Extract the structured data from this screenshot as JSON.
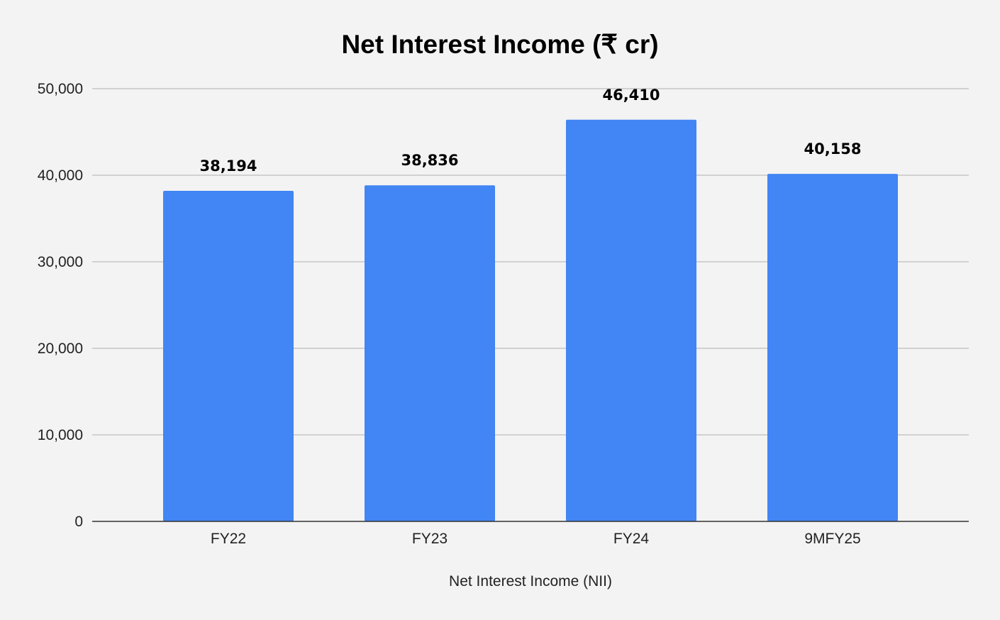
{
  "chart_data": {
    "type": "bar",
    "title": "Net Interest Income (₹ cr)",
    "xlabel": "Net Interest Income (NII)",
    "ylabel": "",
    "categories": [
      "FY22",
      "FY23",
      "FY24",
      "9MFY25"
    ],
    "series": [
      {
        "values": [
          38194,
          38836,
          46410,
          40158
        ],
        "data_labels": [
          "38,194",
          "38,836",
          "46,410",
          "40,158"
        ],
        "color": "#4285f4"
      }
    ],
    "ylim": [
      0,
      50000
    ],
    "yticks": [
      0,
      10000,
      20000,
      30000,
      40000,
      50000
    ],
    "ytick_labels": [
      "0",
      "10,000",
      "20,000",
      "30,000",
      "40,000",
      "50,000"
    ],
    "grid": true,
    "legend": "none"
  },
  "colors": {
    "background": "#f3f3f3",
    "bar": "#4285f4",
    "grid": "#c6c6c6",
    "baseline": "#333333"
  }
}
